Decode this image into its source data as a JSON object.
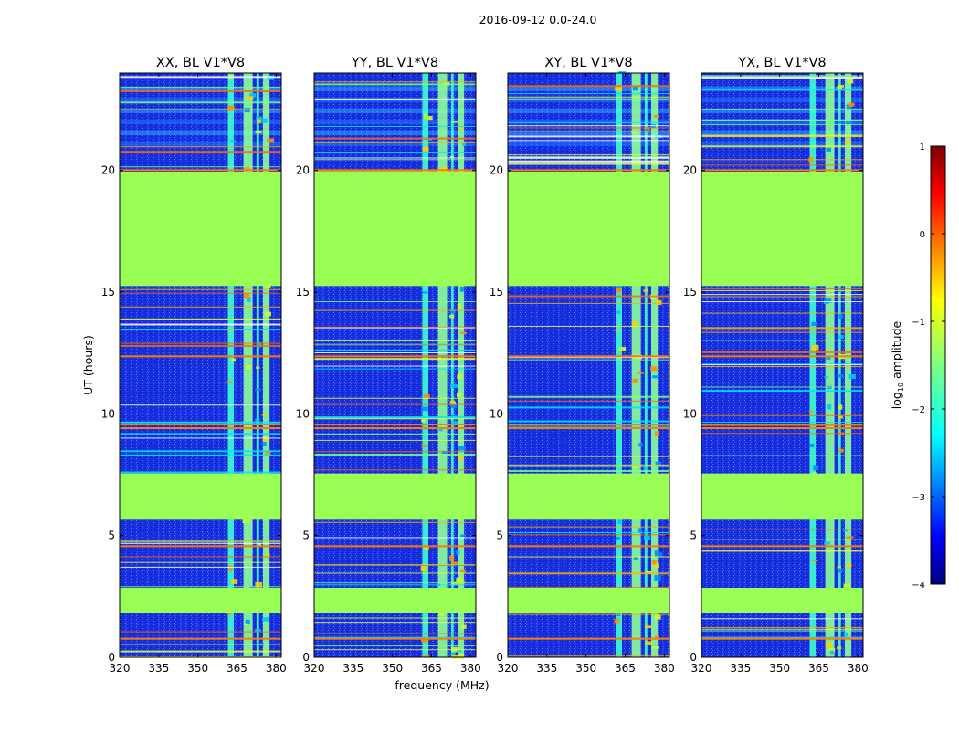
{
  "chart_data": {
    "type": "heatmap",
    "title": "2016-09-12 0.0-24.0",
    "xlabel": "frequency (MHz)",
    "ylabel": "UT (hours)",
    "xlim": [
      320,
      382
    ],
    "ylim": [
      0,
      24
    ],
    "xticks": [
      320,
      335,
      350,
      365,
      380
    ],
    "yticks": [
      0,
      5,
      10,
      15,
      20
    ],
    "panels": [
      {
        "title": "XX, BL V1*V8"
      },
      {
        "title": "YY, BL V1*V8"
      },
      {
        "title": "XY, BL V1*V8"
      },
      {
        "title": "YX, BL V1*V8"
      }
    ],
    "flagged_time_ranges": [
      [
        1.8,
        2.85
      ],
      [
        5.65,
        7.55
      ],
      [
        15.25,
        19.95
      ]
    ],
    "rfi_freq_bands": [
      [
        361.5,
        363.8
      ],
      [
        367.5,
        371.0
      ],
      [
        372.5,
        373.5
      ],
      [
        375.0,
        377.5
      ]
    ],
    "colorbar": {
      "label": "log10 amplitude",
      "label_prefix": "log",
      "label_sub": "10",
      "label_suffix": " amplitude",
      "range": [
        -4,
        1
      ],
      "ticks": [
        "1",
        "0",
        "−1",
        "−2",
        "−3",
        "−4"
      ],
      "tick_values": [
        1,
        0,
        -1,
        -2,
        -3,
        -4
      ],
      "colormap": "jet"
    },
    "flag_color": "#99ff55"
  }
}
